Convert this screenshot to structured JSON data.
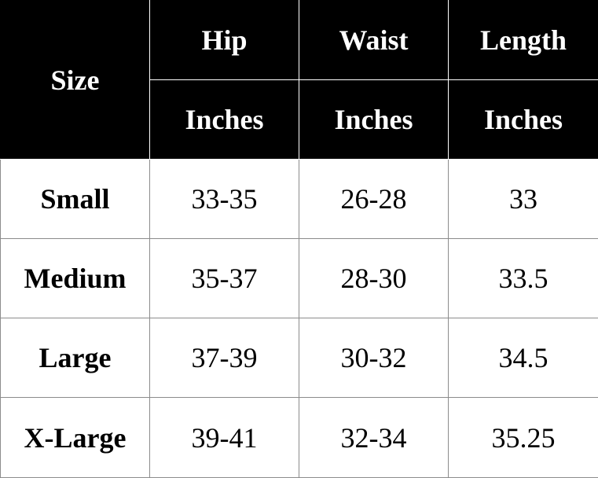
{
  "table": {
    "size_header": "Size",
    "columns": [
      {
        "name": "Hip",
        "unit": "Inches"
      },
      {
        "name": "Waist",
        "unit": "Inches"
      },
      {
        "name": "Length",
        "unit": "Inches"
      }
    ],
    "rows": [
      {
        "size": "Small",
        "values": [
          "33-35",
          "26-28",
          "33"
        ]
      },
      {
        "size": "Medium",
        "values": [
          "35-37",
          "28-30",
          "33.5"
        ]
      },
      {
        "size": "Large",
        "values": [
          "37-39",
          "30-32",
          "34.5"
        ]
      },
      {
        "size": "X-Large",
        "values": [
          "39-41",
          "32-34",
          "35.25"
        ]
      }
    ]
  },
  "colors": {
    "header_background": "#000000",
    "header_text": "#ffffff",
    "body_background": "#ffffff",
    "body_text": "#000000",
    "grid_line": "#8c8c8c"
  }
}
